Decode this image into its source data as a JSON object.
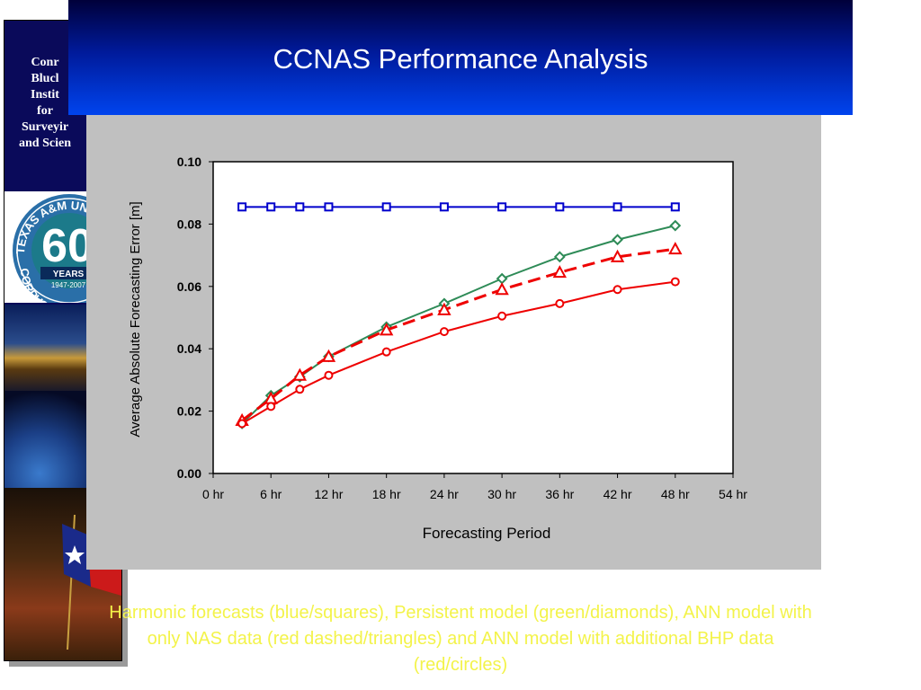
{
  "header": {
    "title": "CCNAS Performance Analysis",
    "bg_colors": [
      "#00003a",
      "#0044ee"
    ]
  },
  "sidebar": {
    "lines": [
      "Conr",
      "Blucl",
      "Instit",
      "for",
      "Surveyir",
      "and Scien"
    ]
  },
  "seal": {
    "arc_text_top": "TEXAS A&M UN",
    "arc_text_bottom": "CORPUS CHI",
    "big_number": "60",
    "years": "YEARS",
    "dates": "1947-2007"
  },
  "chart_data": {
    "type": "line",
    "xlabel": "Forecasting Period",
    "ylabel": "Average Absolute Forecasting Error [m]",
    "xlim": [
      0,
      54
    ],
    "ylim": [
      0,
      0.1
    ],
    "x_ticks": [
      0,
      6,
      12,
      18,
      24,
      30,
      36,
      42,
      48,
      54
    ],
    "x_tick_labels": [
      "0 hr",
      "6 hr",
      "12 hr",
      "18 hr",
      "24 hr",
      "30 hr",
      "36 hr",
      "42 hr",
      "48 hr",
      "54 hr"
    ],
    "y_ticks": [
      0,
      0.02,
      0.04,
      0.06,
      0.08,
      0.1
    ],
    "y_tick_labels": [
      "0.00",
      "0.02",
      "0.04",
      "0.06",
      "0.08",
      "0.10"
    ],
    "grid": false,
    "legend": "none",
    "series": [
      {
        "color": "#0000cc",
        "marker": "square",
        "dashed": false,
        "x": [
          3,
          6,
          9,
          12,
          18,
          24,
          30,
          36,
          42,
          48
        ],
        "y": [
          0.0855,
          0.0855,
          0.0855,
          0.0855,
          0.0855,
          0.0855,
          0.0855,
          0.0855,
          0.0855,
          0.0855
        ]
      },
      {
        "color": "#2e8b57",
        "marker": "diamond",
        "dashed": false,
        "x": [
          3,
          6,
          9,
          12,
          18,
          24,
          30,
          36,
          42,
          48
        ],
        "y": [
          0.016,
          0.025,
          0.031,
          0.0375,
          0.047,
          0.0545,
          0.0625,
          0.0695,
          0.075,
          0.0795
        ]
      },
      {
        "color": "#ee0000",
        "marker": "triangle",
        "dashed": true,
        "x": [
          3,
          6,
          9,
          12,
          18,
          24,
          30,
          36,
          42,
          48
        ],
        "y": [
          0.017,
          0.024,
          0.0315,
          0.0375,
          0.046,
          0.0525,
          0.059,
          0.0645,
          0.0695,
          0.072
        ]
      },
      {
        "color": "#ee0000",
        "marker": "circle",
        "dashed": false,
        "x": [
          3,
          6,
          9,
          12,
          18,
          24,
          30,
          36,
          42,
          48
        ],
        "y": [
          0.016,
          0.0215,
          0.027,
          0.0315,
          0.039,
          0.0455,
          0.0505,
          0.0545,
          0.059,
          0.0615
        ]
      }
    ]
  },
  "caption": {
    "line1": "Harmonic forecasts (blue/squares), Persistent model (green/diamonds), ANN model with",
    "line2": "only NAS data (red dashed/triangles) and ANN model with additional BHP data",
    "line3": "(red/circles)",
    "color": "#f3f34a"
  }
}
